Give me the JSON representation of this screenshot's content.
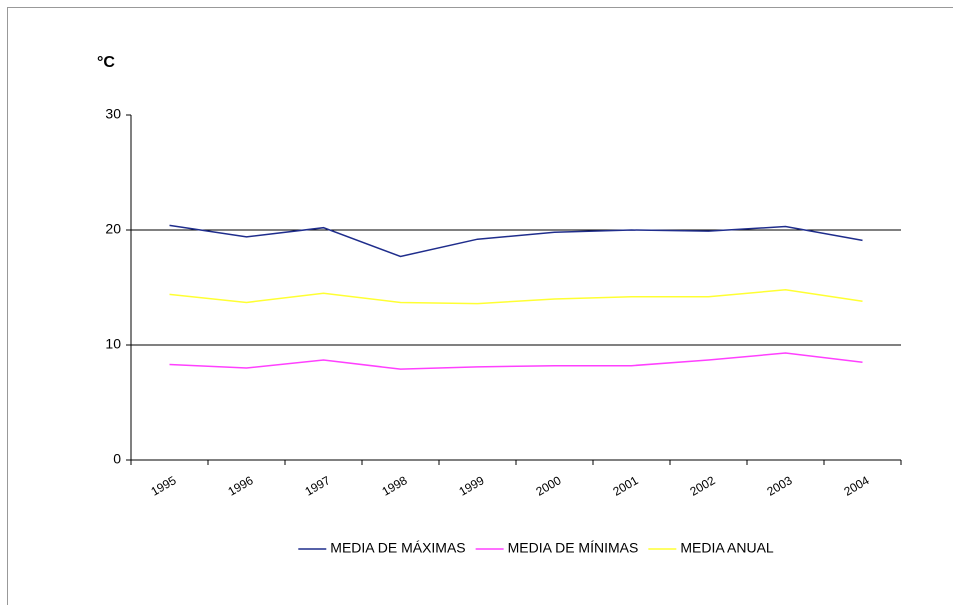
{
  "chart_data": {
    "type": "line",
    "y_axis_label": "°C",
    "categories": [
      "1995",
      "1996",
      "1997",
      "1998",
      "1999",
      "2000",
      "2001",
      "2002",
      "2003",
      "2004"
    ],
    "series": [
      {
        "name": "MEDIA DE MÁXIMAS",
        "color": "#1f2d8c",
        "values": [
          20.4,
          19.4,
          20.2,
          17.7,
          19.2,
          19.8,
          20.0,
          19.9,
          20.3,
          19.1
        ]
      },
      {
        "name": "MEDIA DE MÍNIMAS",
        "color": "#ff40ff",
        "values": [
          8.3,
          8.0,
          8.7,
          7.9,
          8.1,
          8.2,
          8.2,
          8.7,
          9.3,
          8.5
        ]
      },
      {
        "name": "MEDIA ANUAL",
        "color": "#ffff33",
        "values": [
          14.4,
          13.7,
          14.5,
          13.7,
          13.6,
          14.0,
          14.2,
          14.2,
          14.8,
          13.8
        ]
      }
    ],
    "ylim": [
      0,
      30
    ],
    "yticks": [
      0,
      10,
      20,
      30
    ],
    "grid": true,
    "legend": "bottom"
  }
}
